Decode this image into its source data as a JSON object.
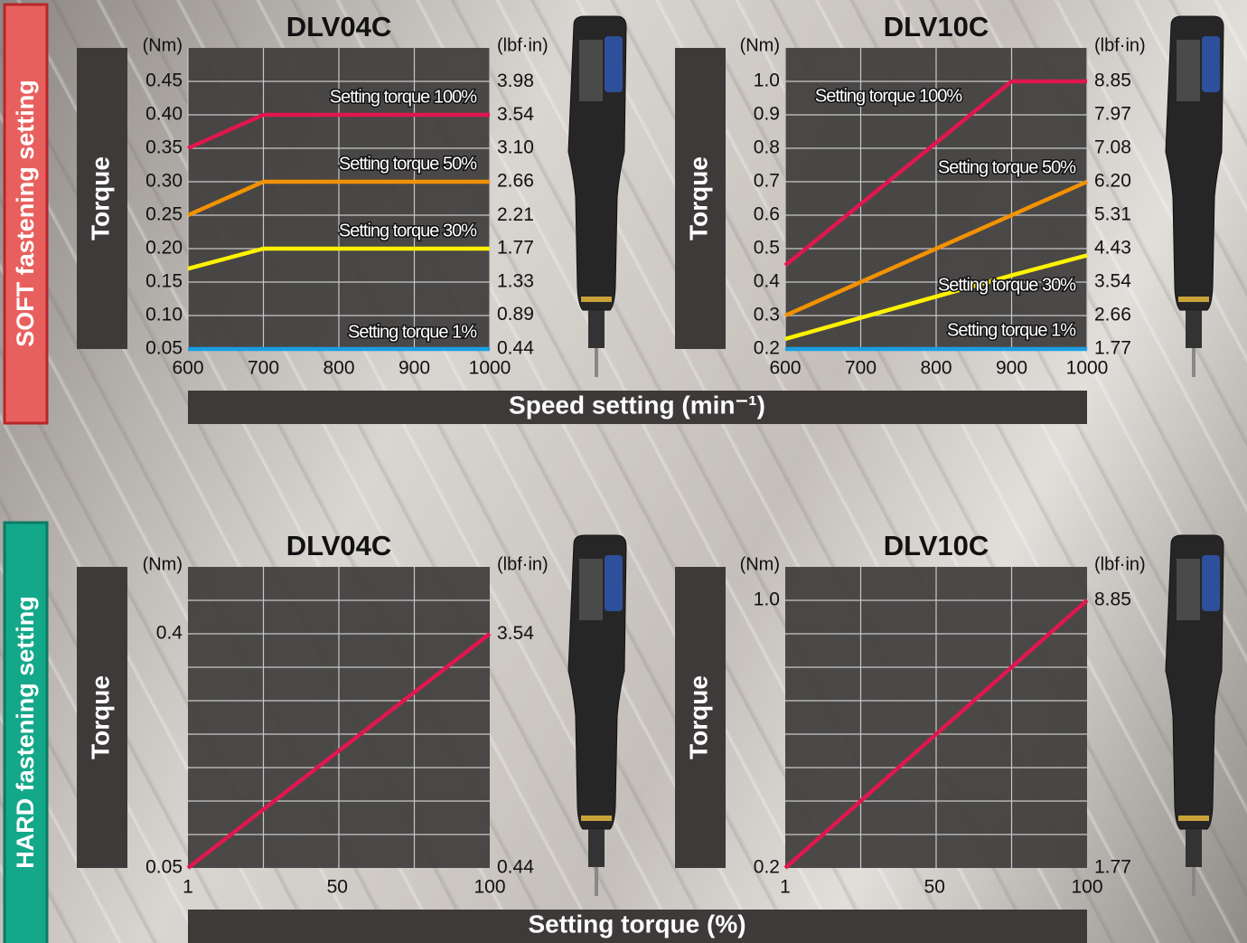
{
  "sections": [
    {
      "label": "SOFT fastening setting",
      "xlabel": "Speed setting (min⁻¹)"
    },
    {
      "label": "HARD fastening setting",
      "xlabel": "Setting torque (%)"
    }
  ],
  "chart_data": [
    {
      "type": "line",
      "title": "DLV04C",
      "ylabel": "Torque",
      "yunit": "(Nm)",
      "y2unit": "(lbf·in)",
      "x": [
        600,
        700,
        1000
      ],
      "xlim": [
        600,
        1000
      ],
      "xticks": [
        600,
        700,
        800,
        900,
        1000
      ],
      "ylim": [
        0.05,
        0.5
      ],
      "yticks": [
        0.05,
        {
          "value": 0.1,
          "label": "0.10"
        },
        0.15,
        {
          "value": 0.2,
          "label": "0.20"
        },
        0.25,
        {
          "value": 0.3,
          "label": "0.30"
        },
        0.35,
        {
          "value": 0.4,
          "label": "0.40"
        },
        0.45
      ],
      "y2lim": [
        0.44,
        4.43
      ],
      "y2ticks": [
        0.44,
        0.89,
        1.33,
        1.77,
        2.21,
        2.66,
        {
          "value": 3.1,
          "label": "3.10"
        },
        3.54,
        3.98
      ],
      "grid": true,
      "series": [
        {
          "name": "Setting torque 100%",
          "color": "#e0174f",
          "values": [
            0.35,
            0.4,
            0.4
          ]
        },
        {
          "name": "Setting torque 50%",
          "color": "#f39200",
          "values": [
            0.25,
            0.3,
            0.3
          ]
        },
        {
          "name": "Setting torque 30%",
          "color": "#fff200",
          "values": [
            0.17,
            0.2,
            0.2
          ]
        },
        {
          "name": "Setting torque 1%",
          "color": "#1a9ee0",
          "values": [
            0.05,
            0.05,
            0.05
          ]
        }
      ]
    },
    {
      "type": "line",
      "title": "DLV10C",
      "ylabel": "Torque",
      "yunit": "(Nm)",
      "y2unit": "(lbf·in)",
      "x": [
        600,
        900,
        1000
      ],
      "xlim": [
        600,
        1000
      ],
      "xticks": [
        600,
        700,
        800,
        900,
        1000
      ],
      "ylim": [
        0.2,
        1.1
      ],
      "yticks": [
        0.2,
        0.3,
        0.4,
        0.5,
        0.6,
        0.7,
        0.8,
        0.9,
        {
          "value": 1,
          "label": "1.0"
        }
      ],
      "y2lim": [
        1.77,
        9.735
      ],
      "y2ticks": [
        1.77,
        2.66,
        3.54,
        4.43,
        5.31,
        {
          "value": 6.2,
          "label": "6.20"
        },
        7.08,
        7.97,
        8.85
      ],
      "grid": true,
      "series": [
        {
          "name": "Setting torque 100%",
          "color": "#e0174f",
          "values": [
            0.45,
            1,
            1
          ]
        },
        {
          "name": "Setting torque 50%",
          "color": "#f39200",
          "values": [
            0.3,
            0.6,
            0.7
          ]
        },
        {
          "name": "Setting torque 30%",
          "color": "#fff200",
          "values": [
            0.23,
            0.42,
            0.48
          ]
        },
        {
          "name": "Setting torque 1%",
          "color": "#1a9ee0",
          "values": [
            0.2,
            0.2,
            0.2
          ]
        }
      ]
    },
    {
      "type": "line",
      "title": "DLV04C",
      "ylabel": "Torque",
      "yunit": "(Nm)",
      "y2unit": "(lbf·in)",
      "x": [
        1,
        100
      ],
      "xlim": [
        1,
        100
      ],
      "xticks": [
        1,
        50,
        100
      ],
      "ylim": [
        0.05,
        0.5
      ],
      "yticks": [
        0.05,
        0.4
      ],
      "y2lim": [
        0.44,
        4.43
      ],
      "y2ticks": [
        0.44,
        3.54
      ],
      "grid": false,
      "series": [
        {
          "color": "#e0174f",
          "values": [
            0.05,
            0.4
          ]
        }
      ]
    },
    {
      "type": "line",
      "title": "DLV10C",
      "ylabel": "Torque",
      "yunit": "(Nm)",
      "y2unit": "(lbf·in)",
      "x": [
        1,
        100
      ],
      "xlim": [
        1,
        100
      ],
      "xticks": [
        1,
        50,
        100
      ],
      "ylim": [
        0.2,
        1.1
      ],
      "yticks": [
        0.2,
        {
          "value": 1,
          "label": "1.0"
        }
      ],
      "y2lim": [
        1.77,
        9.735
      ],
      "y2ticks": [
        1.77,
        8.85
      ],
      "grid": false,
      "series": [
        {
          "color": "#e0174f",
          "values": [
            0.2,
            1
          ]
        }
      ]
    }
  ]
}
